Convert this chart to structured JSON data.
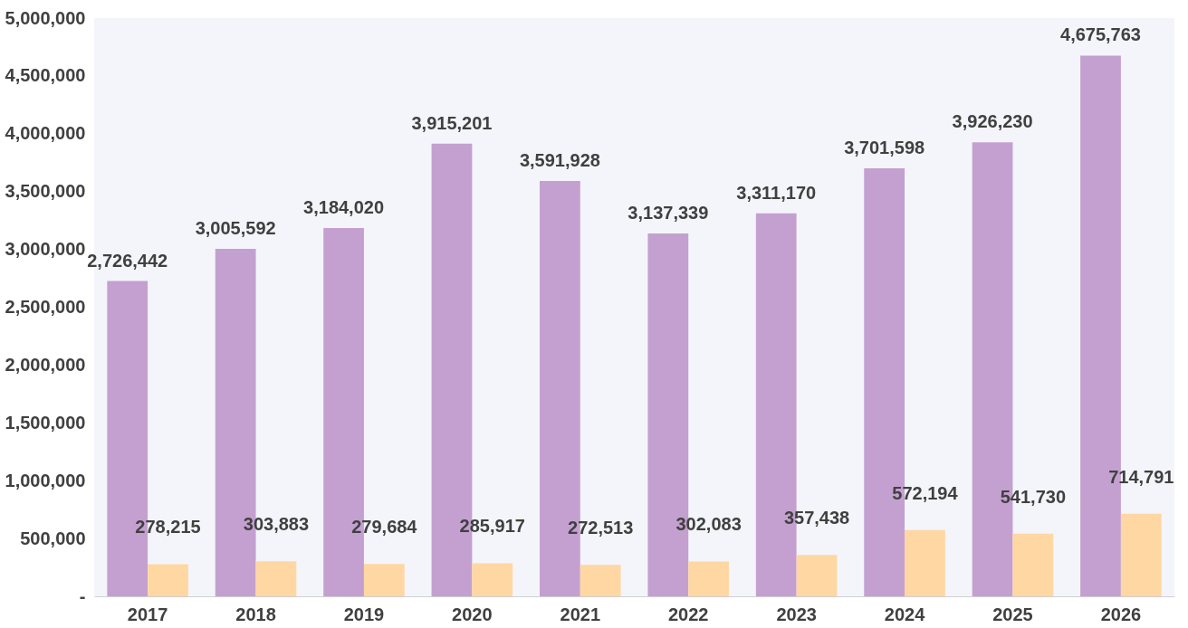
{
  "chart_data": {
    "type": "bar",
    "categories": [
      "2017",
      "2018",
      "2019",
      "2020",
      "2021",
      "2022",
      "2023",
      "2024",
      "2025",
      "2026"
    ],
    "series": [
      {
        "color": "#c4a0d0",
        "values": [
          2726442,
          3005592,
          3184020,
          3915201,
          3591928,
          3137339,
          3311170,
          3701598,
          3926230,
          4675763
        ],
        "value_labels": [
          "2,726,442",
          "3,005,592",
          "3,184,020",
          "3,915,201",
          "3,591,928",
          "3,137,339",
          "3,311,170",
          "3,701,598",
          "3,926,230",
          "4,675,763"
        ]
      },
      {
        "color": "#ffd7a3",
        "values": [
          278215,
          303883,
          279684,
          285917,
          272513,
          302083,
          357438,
          572194,
          541730,
          714791
        ],
        "value_labels": [
          "278,215",
          "303,883",
          "279,684",
          "285,917",
          "272,513",
          "302,083",
          "357,438",
          "572,194",
          "541,730",
          "714,791"
        ]
      }
    ],
    "ylim": [
      0,
      5000000
    ],
    "yticks": [
      {
        "value": 0,
        "label": "-"
      },
      {
        "value": 500000,
        "label": "500,000"
      },
      {
        "value": 1000000,
        "label": "1,000,000"
      },
      {
        "value": 1500000,
        "label": "1,500,000"
      },
      {
        "value": 2000000,
        "label": "2,000,000"
      },
      {
        "value": 2500000,
        "label": "2,500,000"
      },
      {
        "value": 3000000,
        "label": "3,000,000"
      },
      {
        "value": 3500000,
        "label": "3,500,000"
      },
      {
        "value": 4000000,
        "label": "4,000,000"
      },
      {
        "value": 4500000,
        "label": "4,500,000"
      },
      {
        "value": 5000000,
        "label": "5,000,000"
      }
    ],
    "grid": false,
    "legend": false
  }
}
